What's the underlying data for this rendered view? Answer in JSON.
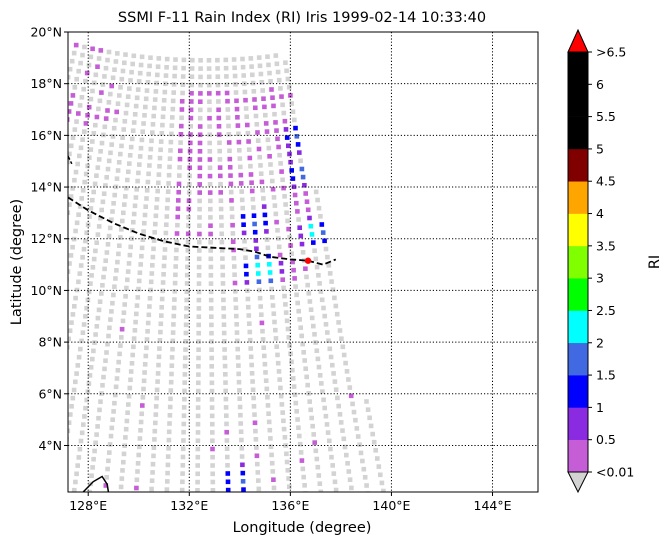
{
  "chart_data": {
    "type": "heatmap",
    "title": "SSMI F-11 Rain Index (RI) Iris 1999-02-14 10:33:40",
    "xlabel": "Longitude (degree)",
    "ylabel": "Latitude (degree)",
    "xlim": [
      127.2,
      145.8
    ],
    "ylim": [
      2.2,
      20.0
    ],
    "xticks": [
      {
        "value": 128,
        "label": "128°E"
      },
      {
        "value": 132,
        "label": "132°E"
      },
      {
        "value": 136,
        "label": "136°E"
      },
      {
        "value": 140,
        "label": "140°E"
      },
      {
        "value": 144,
        "label": "144°E"
      }
    ],
    "yticks": [
      {
        "value": 4,
        "label": "4°N"
      },
      {
        "value": 6,
        "label": "6°N"
      },
      {
        "value": 8,
        "label": "8°N"
      },
      {
        "value": 10,
        "label": "10°N"
      },
      {
        "value": 12,
        "label": "12°N"
      },
      {
        "value": 14,
        "label": "14°N"
      },
      {
        "value": 16,
        "label": "16°N"
      },
      {
        "value": 18,
        "label": "18°N"
      },
      {
        "value": 20,
        "label": "20°N"
      }
    ],
    "grid": true,
    "colorbar": {
      "label": "RI",
      "bins": [
        {
          "label": "<0.01",
          "color": "#c45dd6"
        },
        {
          "label": "0.5",
          "color": "#8a2be2"
        },
        {
          "label": "1",
          "color": "#0000ff"
        },
        {
          "label": "1.5",
          "color": "#4169e1"
        },
        {
          "label": "2",
          "color": "#00ffff"
        },
        {
          "label": "2.5",
          "color": "#00ff00"
        },
        {
          "label": "3",
          "color": "#7fff00"
        },
        {
          "label": "3.5",
          "color": "#ffff00"
        },
        {
          "label": "4",
          "color": "#ffa500"
        },
        {
          "label": "4.5",
          "color": "#800000"
        },
        {
          "label": "5",
          "color": "#000000"
        },
        {
          "label": "5.5",
          "color": "#000000"
        },
        {
          "label": "6",
          "color": "#000000"
        }
      ],
      "top_label": ">6.5",
      "over_color": "#ff0000",
      "under_color": "#d3d3d3"
    },
    "storm_track": [
      [
        127.2,
        13.6
      ],
      [
        128.0,
        13.1
      ],
      [
        129.0,
        12.6
      ],
      [
        130.0,
        12.2
      ],
      [
        131.0,
        11.9
      ],
      [
        132.0,
        11.7
      ],
      [
        133.0,
        11.65
      ],
      [
        134.0,
        11.6
      ],
      [
        134.6,
        11.5
      ],
      [
        135.2,
        11.3
      ],
      [
        136.0,
        11.2
      ],
      [
        136.7,
        11.15
      ],
      [
        137.3,
        11.0
      ],
      [
        137.8,
        11.2
      ]
    ],
    "storm_position": {
      "lon": 136.7,
      "lat": 11.15
    },
    "rain_patches": [
      {
        "lon": 134.9,
        "lat": 10.8,
        "r": 0.75,
        "level": 5
      },
      {
        "lon": 137.0,
        "lat": 12.3,
        "r": 0.55,
        "level": 5
      },
      {
        "lon": 136.4,
        "lat": 14.5,
        "r": 0.45,
        "level": 4
      },
      {
        "lon": 136.4,
        "lat": 16.0,
        "r": 0.6,
        "level": 2
      },
      {
        "lon": 134.6,
        "lat": 12.6,
        "r": 0.55,
        "level": 2
      },
      {
        "lon": 133.9,
        "lat": 2.6,
        "r": 0.5,
        "level": 3
      }
    ]
  }
}
